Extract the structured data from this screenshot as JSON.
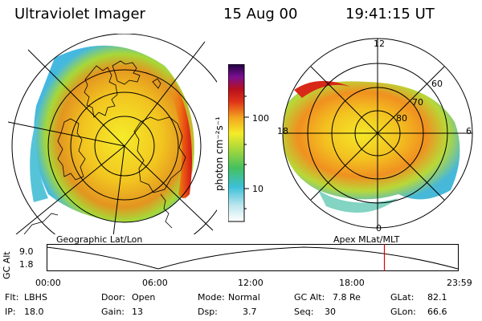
{
  "header": {
    "title": "Ultraviolet Imager",
    "date": "15 Aug 00",
    "time": "19:41:15 UT"
  },
  "colorbar": {
    "unit": "photon cm⁻²s⁻¹",
    "ticks": [
      "100",
      "10"
    ]
  },
  "left_panel": {
    "caption": "Geographic Lat/Lon"
  },
  "right_panel": {
    "caption": "Apex MLat/MLT",
    "mlt_labels": {
      "top": "12",
      "left": "18",
      "right": "6",
      "bottom": "0"
    },
    "lat_labels": [
      "60",
      "70",
      "80"
    ]
  },
  "altitude_plot": {
    "ylabel": "GC Alt",
    "yticks": [
      "9.0",
      "1.8"
    ],
    "xticks": [
      "00:00",
      "06:00",
      "12:00",
      "18:00",
      "23:59"
    ],
    "current_time_fraction": 0.8203
  },
  "footer": {
    "flt_label": "Flt:",
    "flt_value": "LBHS",
    "ip_label": "IP:",
    "ip_value": "18.0",
    "door_label": "Door:",
    "door_value": "Open",
    "gain_label": "Gain:",
    "gain_value": "13",
    "mode_label": "Mode:",
    "mode_value": "Normal",
    "dsp_label": "Dsp:",
    "dsp_value": "3.7",
    "gcalt_label": "GC Alt:",
    "gcalt_value": "7.8 Re",
    "seq_label": "Seq:",
    "seq_value": "30",
    "glat_label": "GLat:",
    "glat_value": "82.1",
    "glon_label": "GLon:",
    "glon_value": "66.6"
  },
  "colors": {
    "red_marker": "#e00000",
    "line": "#000000"
  }
}
